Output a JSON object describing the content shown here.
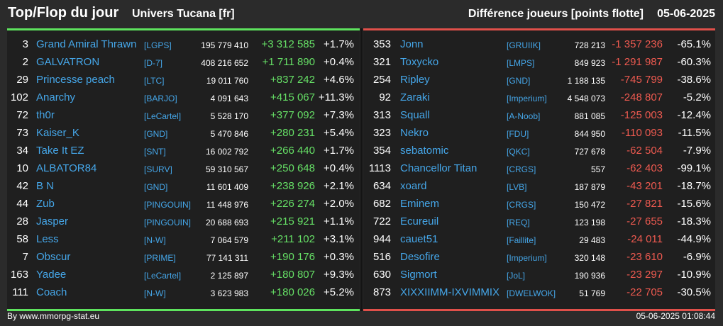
{
  "header": {
    "title": "Top/Flop du jour",
    "subtitle": "Univers Tucana [fr]",
    "metric": "Différence joueurs [points flotte]",
    "date": "05-06-2025"
  },
  "colors": {
    "background": "#2b2b2b",
    "panel": "#1f1f1f",
    "accent_top": "#5ee35e",
    "accent_flop": "#e0504a",
    "name": "#45a6e8",
    "gain": "#66e066",
    "loss": "#ee5a50"
  },
  "top": [
    {
      "rank": "3",
      "name": "Grand Amiral Thrawn",
      "alliance": "[LGPS]",
      "points": "195 779 410",
      "diff": "+3 312 585",
      "pct": "+1.7%"
    },
    {
      "rank": "2",
      "name": "GALVATRON",
      "alliance": "[D-7]",
      "points": "408 216 652",
      "diff": "+1 711 890",
      "pct": "+0.4%"
    },
    {
      "rank": "29",
      "name": "Princesse peach",
      "alliance": "[LTC]",
      "points": "19 011 760",
      "diff": "+837 242",
      "pct": "+4.6%"
    },
    {
      "rank": "102",
      "name": "Anarchy",
      "alliance": "[BARJO]",
      "points": "4 091 643",
      "diff": "+415 067",
      "pct": "+11.3%"
    },
    {
      "rank": "72",
      "name": "th0r",
      "alliance": "[LeCartel]",
      "points": "5 528 170",
      "diff": "+377 092",
      "pct": "+7.3%"
    },
    {
      "rank": "73",
      "name": "Kaiser_K",
      "alliance": "[GND]",
      "points": "5 470 846",
      "diff": "+280 231",
      "pct": "+5.4%"
    },
    {
      "rank": "34",
      "name": "Take It EZ",
      "alliance": "[SNT]",
      "points": "16 002 792",
      "diff": "+266 440",
      "pct": "+1.7%"
    },
    {
      "rank": "10",
      "name": "ALBATOR84",
      "alliance": "[SURV]",
      "points": "59 310 567",
      "diff": "+250 648",
      "pct": "+0.4%"
    },
    {
      "rank": "42",
      "name": "B N",
      "alliance": "[GND]",
      "points": "11 601 409",
      "diff": "+238 926",
      "pct": "+2.1%"
    },
    {
      "rank": "44",
      "name": "Zub",
      "alliance": "[PINGOUIN]",
      "points": "11 448 976",
      "diff": "+226 274",
      "pct": "+2.0%"
    },
    {
      "rank": "28",
      "name": "Jasper",
      "alliance": "[PINGOUIN]",
      "points": "20 688 693",
      "diff": "+215 921",
      "pct": "+1.1%"
    },
    {
      "rank": "58",
      "name": "Less",
      "alliance": "[N-W]",
      "points": "7 064 579",
      "diff": "+211 102",
      "pct": "+3.1%"
    },
    {
      "rank": "7",
      "name": "Obscur",
      "alliance": "[PRIME]",
      "points": "77 141 311",
      "diff": "+190 176",
      "pct": "+0.3%"
    },
    {
      "rank": "163",
      "name": "Yadee",
      "alliance": "[LeCartel]",
      "points": "2 125 897",
      "diff": "+180 807",
      "pct": "+9.3%"
    },
    {
      "rank": "111",
      "name": "Coach",
      "alliance": "[N-W]",
      "points": "3 623 983",
      "diff": "+180 026",
      "pct": "+5.2%"
    }
  ],
  "flop": [
    {
      "rank": "353",
      "name": "Jonn",
      "alliance": "[GRUIIK]",
      "points": "728 213",
      "diff": "-1 357 236",
      "pct": "-65.1%"
    },
    {
      "rank": "321",
      "name": "Toxycko",
      "alliance": "[LMPS]",
      "points": "849 923",
      "diff": "-1 291 987",
      "pct": "-60.3%"
    },
    {
      "rank": "254",
      "name": "Ripley",
      "alliance": "[GND]",
      "points": "1 188 135",
      "diff": "-745 799",
      "pct": "-38.6%"
    },
    {
      "rank": "92",
      "name": "Zaraki",
      "alliance": "[Imperium]",
      "points": "4 548 073",
      "diff": "-248 807",
      "pct": "-5.2%"
    },
    {
      "rank": "313",
      "name": "Squall",
      "alliance": "[A-Noob]",
      "points": "881 085",
      "diff": "-125 003",
      "pct": "-12.4%"
    },
    {
      "rank": "323",
      "name": "Nekro",
      "alliance": "[FDU]",
      "points": "844 950",
      "diff": "-110 093",
      "pct": "-11.5%"
    },
    {
      "rank": "354",
      "name": "sebatomic",
      "alliance": "[QKC]",
      "points": "727 678",
      "diff": "-62 504",
      "pct": "-7.9%"
    },
    {
      "rank": "1113",
      "name": "Chancellor Titan",
      "alliance": "[CRGS]",
      "points": "557",
      "diff": "-62 403",
      "pct": "-99.1%"
    },
    {
      "rank": "634",
      "name": "xoard",
      "alliance": "[LVB]",
      "points": "187 879",
      "diff": "-43 201",
      "pct": "-18.7%"
    },
    {
      "rank": "682",
      "name": "Eminem",
      "alliance": "[CRGS]",
      "points": "150 472",
      "diff": "-27 821",
      "pct": "-15.6%"
    },
    {
      "rank": "722",
      "name": "Ecureuil",
      "alliance": "[REQ]",
      "points": "123 198",
      "diff": "-27 655",
      "pct": "-18.3%"
    },
    {
      "rank": "944",
      "name": "cauet51",
      "alliance": "[Faillite]",
      "points": "29 483",
      "diff": "-24 011",
      "pct": "-44.9%"
    },
    {
      "rank": "516",
      "name": "Desofire",
      "alliance": "[Imperium]",
      "points": "320 148",
      "diff": "-23 610",
      "pct": "-6.9%"
    },
    {
      "rank": "630",
      "name": "Sigmort",
      "alliance": "[JoL]",
      "points": "190 936",
      "diff": "-23 297",
      "pct": "-10.9%"
    },
    {
      "rank": "873",
      "name": "XIXXIIMM-IXVIMMIX",
      "alliance": "[DWELWOK]",
      "points": "51 769",
      "diff": "-22 705",
      "pct": "-30.5%"
    }
  ],
  "footer": {
    "source": "By www.mmorpg-stat.eu",
    "timestamp": "05-06-2025 01:08:44"
  }
}
